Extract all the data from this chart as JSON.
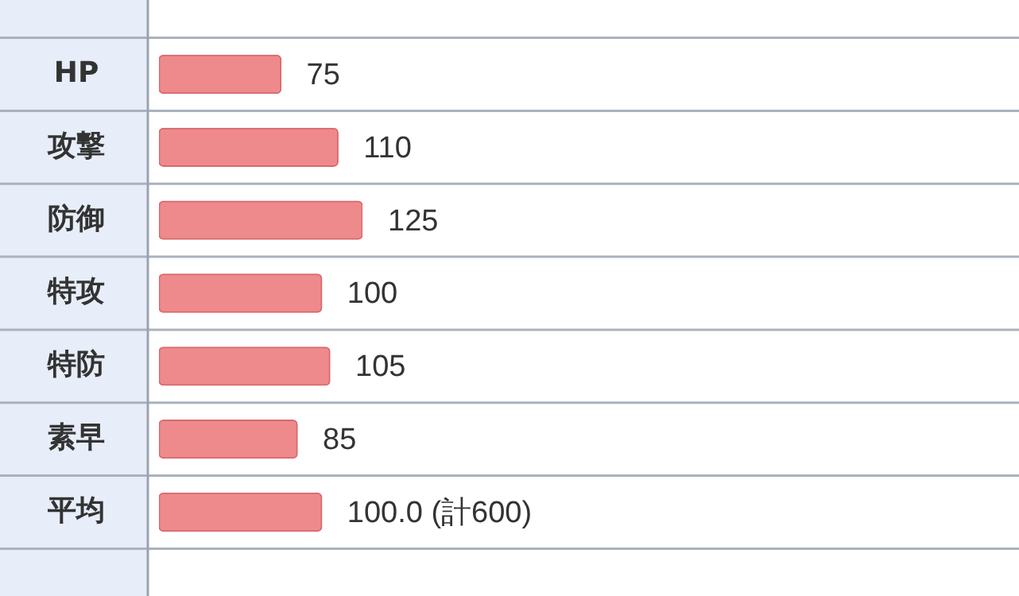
{
  "chart_data": {
    "type": "bar",
    "orientation": "horizontal",
    "categories": [
      "HP",
      "攻撃",
      "防御",
      "特攻",
      "特防",
      "素早",
      "平均"
    ],
    "values": [
      75,
      110,
      125,
      100,
      105,
      85,
      100.0
    ],
    "value_labels": [
      "75",
      "110",
      "125",
      "100",
      "105",
      "85",
      "100.0 (計600)"
    ],
    "color": "#ef8a8c",
    "tick_labels": "y",
    "grid": "y",
    "legend": false
  }
}
